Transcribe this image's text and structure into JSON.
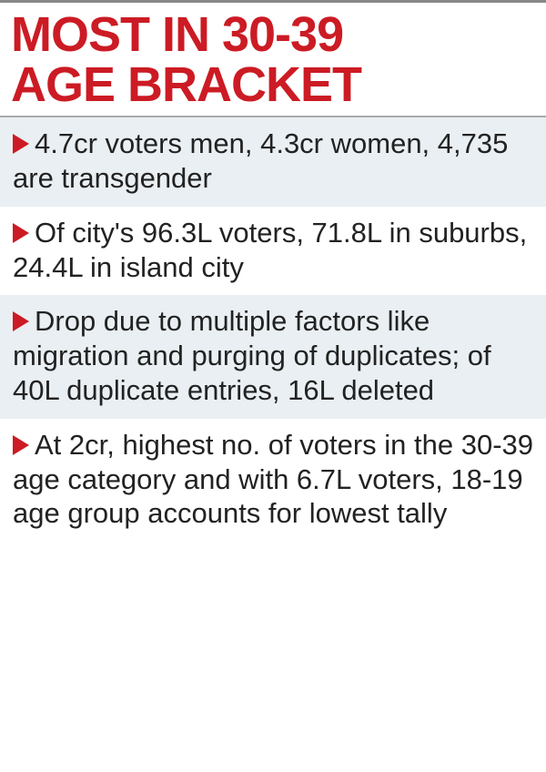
{
  "title_line1": "MOST IN 30-39",
  "title_line2": "AGE BRACKET",
  "colors": {
    "accent": "#cc1b24",
    "rule": "#aaaaaa",
    "alt_bg": "#e9eff2",
    "text": "#222222",
    "top_border": "#888888"
  },
  "items": [
    "4.7cr voters men, 4.3cr women, 4,735 are transgender",
    "Of city's 96.3L voters, 71.8L in suburbs, 24.4L in island city",
    "Drop due to multiple factors like migration and purging of duplicates; of 40L duplicate entries, 16L deleted",
    "At 2cr, highest no. of voters in the 30-39 age category and with 6.7L voters, 18-19 age group accounts for lowest tally"
  ]
}
